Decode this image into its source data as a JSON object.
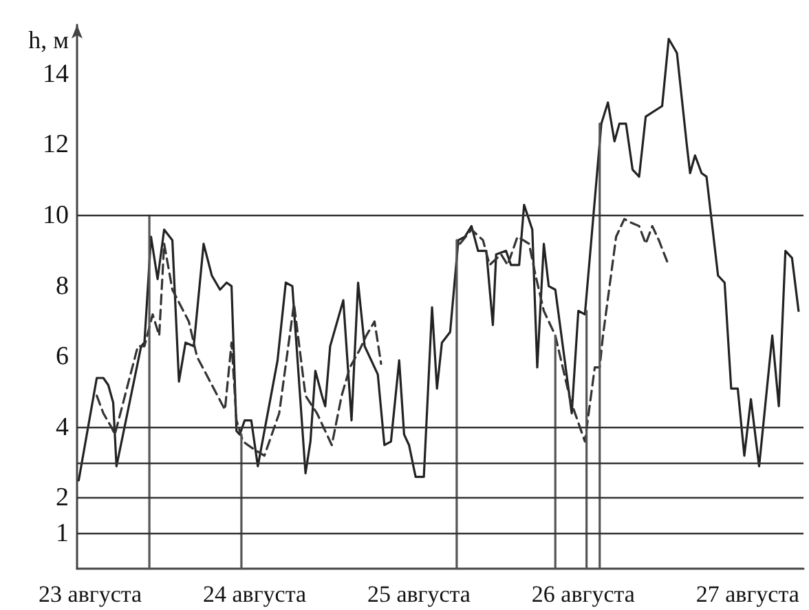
{
  "chart_data": {
    "type": "line",
    "ylabel": "h, м",
    "xlim": [
      22.92,
      27.34
    ],
    "xticks": [
      {
        "value": 23,
        "label": "23 августа"
      },
      {
        "value": 24,
        "label": "24 августа"
      },
      {
        "value": 25,
        "label": "25 августа"
      },
      {
        "value": 26,
        "label": "26 августа"
      },
      {
        "value": 27,
        "label": "27 августа"
      }
    ],
    "ylim": [
      0,
      15.4
    ],
    "yticks": [
      1,
      2,
      4,
      6,
      8,
      10,
      12,
      14
    ],
    "grid": false,
    "marker": "none",
    "ref_lines": [
      {
        "axis": "y",
        "value": 1,
        "color": "#333333"
      },
      {
        "axis": "y",
        "value": 2,
        "color": "#333333"
      },
      {
        "axis": "y",
        "value": 3,
        "color": "#333333"
      },
      {
        "axis": "y",
        "value": 4,
        "color": "#333333"
      },
      {
        "axis": "y",
        "value": 10,
        "color": "#333333"
      }
    ],
    "series": [
      {
        "color": "#222222",
        "line_style": "solid",
        "x": [
          22.93,
          23.04,
          23.08,
          23.11,
          23.14,
          23.16,
          23.31,
          23.33,
          23.37,
          23.41,
          23.45,
          23.5,
          23.54,
          23.58,
          23.63,
          23.69,
          23.74,
          23.79,
          23.83,
          23.86,
          23.89,
          23.91,
          23.94,
          23.98,
          24.02,
          24.14,
          24.19,
          24.23,
          24.31,
          24.34,
          24.37,
          24.41,
          24.43,
          24.46,
          24.54,
          24.59,
          24.63,
          24.67,
          24.75,
          24.79,
          24.83,
          24.88,
          24.91,
          24.94,
          24.98,
          25.03,
          25.08,
          25.11,
          25.14,
          25.19,
          25.24,
          25.28,
          25.32,
          25.36,
          25.41,
          25.45,
          25.47,
          25.53,
          25.56,
          25.61,
          25.64,
          25.69,
          25.72,
          25.76,
          25.79,
          25.83,
          25.93,
          25.97,
          26.01,
          26.11,
          26.15,
          26.19,
          26.22,
          26.26,
          26.3,
          26.34,
          26.38,
          26.48,
          26.52,
          26.57,
          26.63,
          26.65,
          26.68,
          26.72,
          26.75,
          26.82,
          26.86,
          26.9,
          26.94,
          26.98,
          27.02,
          27.07,
          27.15,
          27.19,
          27.23,
          27.27,
          27.31
        ],
        "values": [
          2.5,
          5.4,
          5.4,
          5.2,
          4.7,
          2.9,
          6.3,
          6.4,
          9.4,
          8.2,
          9.6,
          9.3,
          5.3,
          6.4,
          6.3,
          9.2,
          8.3,
          7.9,
          8.1,
          8.0,
          3.9,
          3.8,
          4.2,
          4.2,
          2.9,
          5.9,
          8.1,
          8.0,
          2.7,
          3.6,
          5.6,
          4.9,
          4.6,
          6.3,
          7.6,
          4.2,
          8.1,
          6.3,
          5.5,
          3.5,
          3.6,
          5.9,
          3.8,
          3.5,
          2.6,
          2.6,
          7.4,
          5.1,
          6.4,
          6.7,
          9.3,
          9.4,
          9.7,
          9.0,
          9.0,
          6.9,
          8.9,
          9.0,
          8.6,
          8.6,
          10.3,
          9.6,
          5.7,
          9.2,
          8.0,
          7.9,
          4.4,
          7.3,
          7.2,
          12.6,
          13.2,
          12.1,
          12.6,
          12.6,
          11.3,
          11.1,
          12.8,
          13.1,
          15.0,
          14.6,
          12.0,
          11.2,
          11.7,
          11.2,
          11.1,
          8.3,
          8.1,
          5.1,
          5.1,
          3.2,
          4.8,
          2.9,
          6.6,
          4.6,
          9.0,
          8.8,
          7.3
        ]
      },
      {
        "color": "#333333",
        "line_style": "dashed",
        "x": [
          23.04,
          23.08,
          23.13,
          23.15,
          23.29,
          23.33,
          23.38,
          23.42,
          23.45,
          23.5,
          23.6,
          23.65,
          23.82,
          23.86,
          23.89,
          23.93,
          23.99,
          24.06,
          24.15,
          24.24,
          24.31,
          24.38,
          24.47,
          24.53,
          24.58,
          24.64,
          24.68,
          24.73,
          24.77,
          25.0,
          25.25,
          25.32,
          25.39,
          25.43,
          25.5,
          25.54,
          25.6,
          25.67,
          25.71,
          25.76,
          25.83,
          25.92,
          26.01,
          26.07,
          26.1,
          26.12,
          26.2,
          26.25,
          26.29,
          26.34,
          26.38,
          26.42,
          26.46,
          26.51
        ],
        "values": [
          4.9,
          4.4,
          4.0,
          3.8,
          6.3,
          6.3,
          7.2,
          6.6,
          9.2,
          7.9,
          7.0,
          6.0,
          4.5,
          6.4,
          4.2,
          3.6,
          3.4,
          3.2,
          4.4,
          7.5,
          4.9,
          4.4,
          3.5,
          4.9,
          5.7,
          6.2,
          6.6,
          7.0,
          5.8,
          null,
          9.2,
          9.6,
          9.3,
          8.6,
          8.9,
          8.6,
          9.4,
          9.2,
          8.3,
          7.3,
          6.6,
          4.8,
          3.6,
          5.7,
          5.7,
          6.6,
          9.4,
          9.9,
          9.8,
          9.7,
          9.2,
          9.7,
          9.3,
          8.7
        ]
      },
      {
        "color": "#555555",
        "line_style": "solid",
        "x": [
          23.36,
          23.36
        ],
        "values": [
          0,
          10
        ]
      },
      {
        "color": "#555555",
        "line_style": "solid",
        "x": [
          23.92,
          23.92
        ],
        "values": [
          0,
          3.8
        ]
      },
      {
        "color": "#555555",
        "line_style": "solid",
        "x": [
          25.23,
          25.23
        ],
        "values": [
          0,
          9.3
        ]
      },
      {
        "color": "#555555",
        "line_style": "solid",
        "x": [
          25.83,
          25.83
        ],
        "values": [
          0,
          6.6
        ]
      },
      {
        "color": "#555555",
        "line_style": "solid",
        "x": [
          26.02,
          26.02
        ],
        "values": [
          0,
          7.3
        ]
      },
      {
        "color": "#555555",
        "line_style": "solid",
        "x": [
          26.1,
          26.1
        ],
        "values": [
          0,
          12.6
        ]
      }
    ]
  }
}
